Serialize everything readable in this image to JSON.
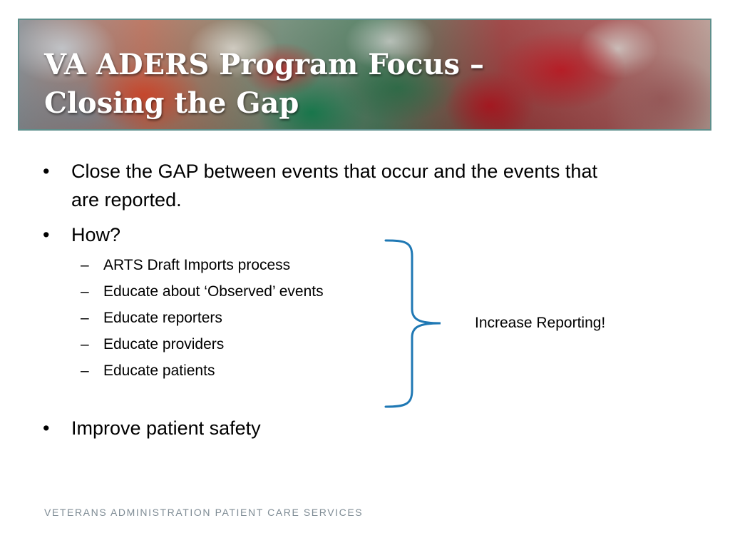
{
  "slide": {
    "title_line1": "VA ADERS Program Focus –",
    "title_line2": "Closing the Gap",
    "bullets": [
      {
        "marker": "•",
        "text_line1": "Close the GAP between events that occur and the events that",
        "text_line2": "are reported."
      },
      {
        "marker": "•",
        "text": "How?",
        "subitems": [
          {
            "marker": "–",
            "text": "ARTS Draft Imports process"
          },
          {
            "marker": "–",
            "text": "Educate about ‘Observed’ events"
          },
          {
            "marker": "–",
            "text": "Educate reporters"
          },
          {
            "marker": "–",
            "text": "Educate providers"
          },
          {
            "marker": "–",
            "text": "Educate patients"
          }
        ]
      },
      {
        "marker": "•",
        "text": "Improve patient safety"
      }
    ],
    "callout": "Increase Reporting!",
    "footer": "VETERANS ADMINISTRATION PATIENT CARE SERVICES"
  },
  "colors": {
    "brace": "#1f78b4",
    "title_text": "#ffffff",
    "footer_text": "#7f8c95",
    "banner_border": "#5f8f8c"
  },
  "icons": {
    "banner_image": "pills-photo-banner",
    "brace": "right-curly-brace"
  }
}
